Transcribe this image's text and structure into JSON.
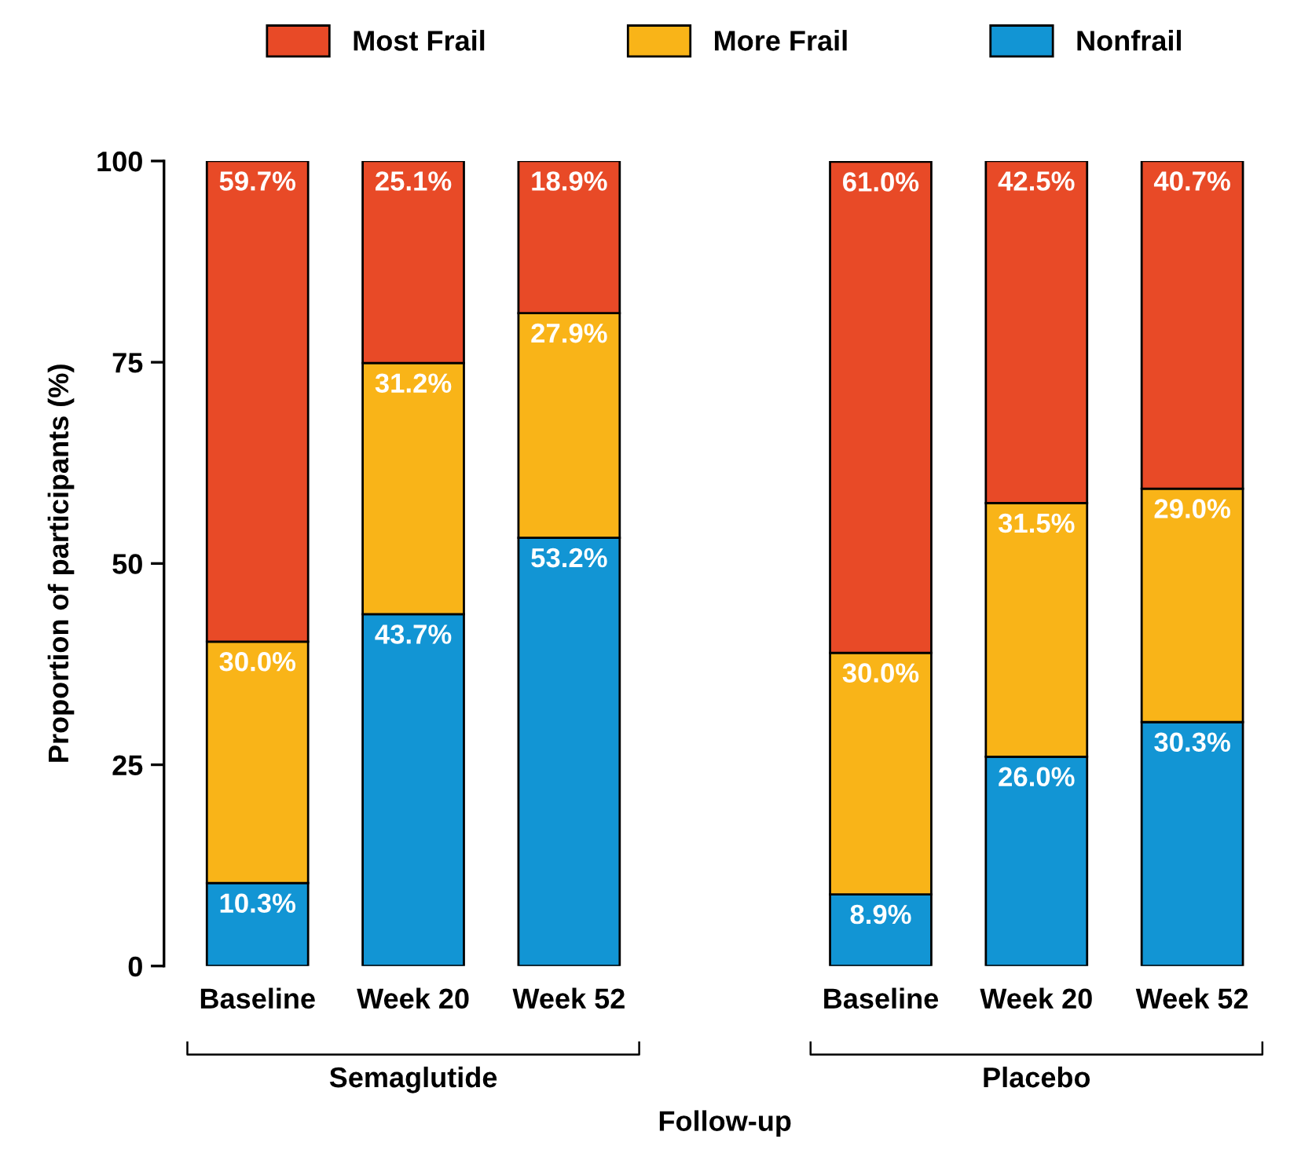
{
  "chart_data": {
    "type": "bar",
    "stacked": true,
    "xlabel": "Follow-up",
    "ylabel": "Proportion of participants (%)",
    "categories": [
      "Baseline",
      "Week 20",
      "Week 52",
      "Baseline",
      "Week 20",
      "Week 52"
    ],
    "annotations": [
      "Semaglutide",
      "Placebo"
    ],
    "ylim": [
      0,
      100
    ],
    "yticks": [
      0,
      25,
      50,
      75,
      100
    ],
    "grid": false,
    "legend": "top",
    "series": [
      {
        "name": "Nonfrail",
        "color": "#1295d4",
        "values": [
          10.3,
          43.7,
          53.2,
          8.9,
          26.0,
          30.3
        ],
        "value_labels": [
          "10.3%",
          "43.7%",
          "53.2%",
          "8.9%",
          "26.0%",
          "30.3%"
        ]
      },
      {
        "name": "More Frail",
        "color": "#f9b418",
        "values": [
          30.0,
          31.2,
          27.9,
          30.0,
          31.5,
          29.0
        ],
        "value_labels": [
          "30.0%",
          "31.2%",
          "27.9%",
          "30.0%",
          "31.5%",
          "29.0%"
        ]
      },
      {
        "name": "Most Frail",
        "color": "#e84a27",
        "values": [
          59.7,
          25.1,
          18.9,
          61.0,
          42.5,
          40.7
        ],
        "value_labels": [
          "59.7%",
          "25.1%",
          "18.9%",
          "61.0%",
          "42.5%",
          "40.7%"
        ]
      }
    ]
  }
}
